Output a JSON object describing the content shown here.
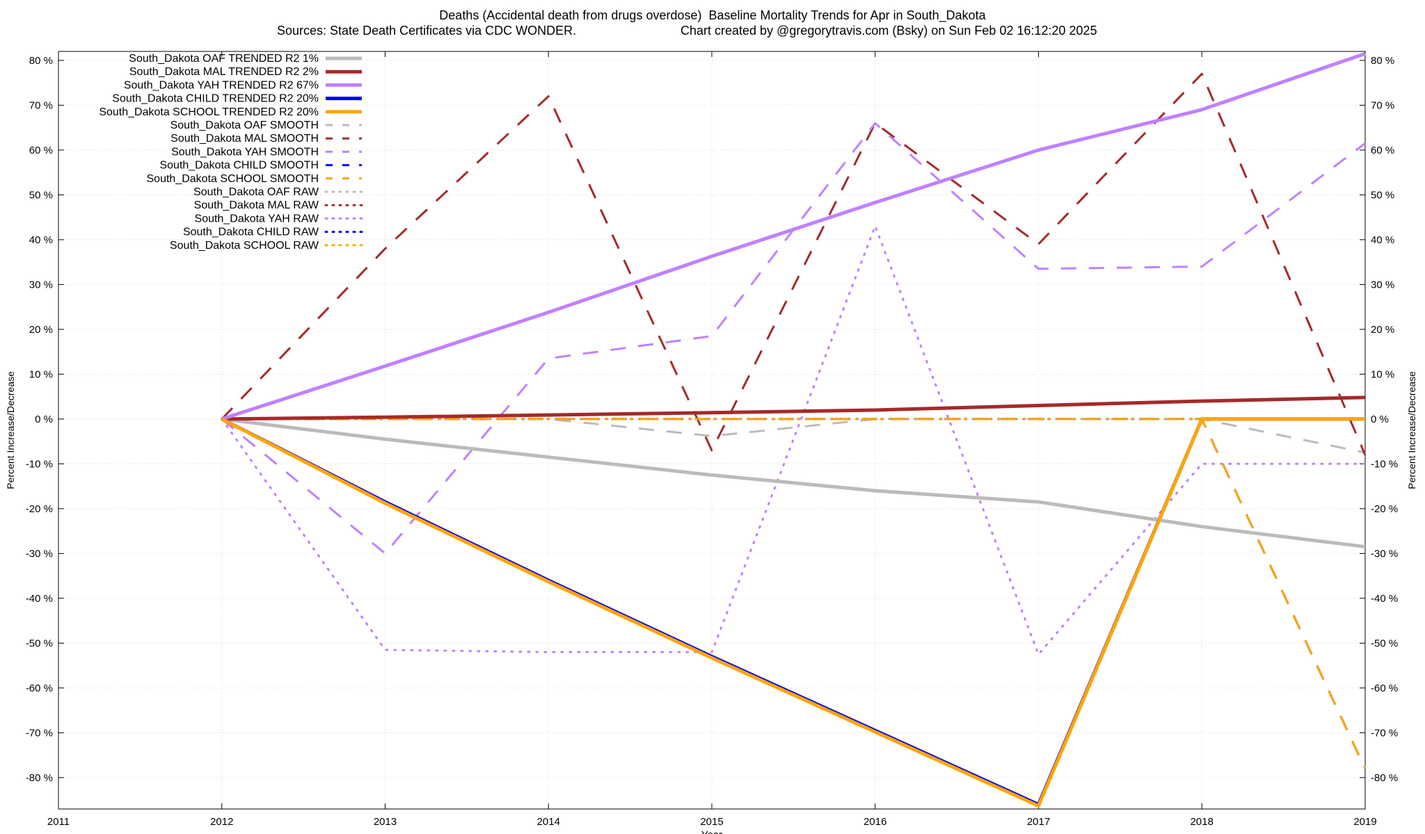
{
  "chart_data": {
    "type": "line",
    "title": "Deaths (Accidental death from drugs overdose)  Baseline Mortality Trends for Apr in South_Dakota",
    "subtitle_left": "Sources: State Death Certificates via CDC WONDER.",
    "subtitle_right": "Chart created by @gregorytravis.com (Bsky) on Sun Feb 02 16:12:20 2025",
    "xlabel": "Year",
    "ylabel_left": "Percent Increase/Decrease",
    "ylabel_right": "Percent Increase/Decrease",
    "xlim": [
      2011,
      2019
    ],
    "ylim": [
      -87,
      82
    ],
    "x_ticks": [
      "2011",
      "2012",
      "2013",
      "2014",
      "2015",
      "2016",
      "2017",
      "2018",
      "2019"
    ],
    "y_ticks": [
      "80 %",
      "70 %",
      "60 %",
      "50 %",
      "40 %",
      "30 %",
      "20 %",
      "10 %",
      "0 %",
      "-10 %",
      "-20 %",
      "-30 %",
      "-40 %",
      "-50 %",
      "-60 %",
      "-70 %",
      "-80 %"
    ],
    "y_tick_values": [
      80,
      70,
      60,
      50,
      40,
      30,
      20,
      10,
      0,
      -10,
      -20,
      -30,
      -40,
      -50,
      -60,
      -70,
      -80
    ],
    "grid": true,
    "legend_position": "top-left",
    "x": [
      2012,
      2013,
      2014,
      2015,
      2016,
      2017,
      2018,
      2019
    ],
    "series": [
      {
        "name": "South_Dakota OAF TRENDED R2   1%",
        "style": "trended",
        "color": "#bbbbbb",
        "values": [
          0,
          -4.5,
          -8.5,
          -12.5,
          -16,
          -18.5,
          -24,
          -28.5
        ]
      },
      {
        "name": "South_Dakota MAL TRENDED R2   2%",
        "style": "trended",
        "color": "#a52a2a",
        "values": [
          0,
          0.4,
          0.9,
          1.4,
          2,
          3,
          4,
          4.8
        ]
      },
      {
        "name": "South_Dakota YAH TRENDED R2  67%",
        "style": "trended",
        "color": "#c080ff",
        "values": [
          0,
          11.8,
          23.8,
          36.3,
          48.3,
          60,
          69,
          81.5
        ]
      },
      {
        "name": "South_Dakota CHILD TRENDED R2  20%",
        "style": "trended",
        "color": "#0000ff",
        "values": [
          0,
          -18.5,
          -36,
          -53,
          -69.5,
          -86,
          0,
          0
        ]
      },
      {
        "name": "South_Dakota SCHOOL TRENDED R2  20%",
        "style": "trended",
        "color": "#ffa500",
        "values": [
          0,
          -18.8,
          -36.3,
          -53.3,
          -69.8,
          -86.3,
          0,
          0
        ]
      },
      {
        "name": "South_Dakota OAF SMOOTH",
        "style": "smooth",
        "color": "#bbbbbb",
        "values": [
          0,
          0,
          0,
          -3.8,
          0,
          0,
          0,
          -7.5
        ]
      },
      {
        "name": "South_Dakota MAL SMOOTH",
        "style": "smooth",
        "color": "#a52a2a",
        "values": [
          0,
          38,
          72,
          -7,
          66,
          39,
          77,
          -8
        ]
      },
      {
        "name": "South_Dakota YAH SMOOTH",
        "style": "smooth",
        "color": "#c080ff",
        "values": [
          0,
          -30,
          13.5,
          18.5,
          66,
          33.5,
          34,
          61.5
        ]
      },
      {
        "name": "South_Dakota CHILD SMOOTH",
        "style": "smooth",
        "color": "#0000ff",
        "values": [
          0,
          0,
          0,
          0,
          0,
          0,
          0,
          -78
        ]
      },
      {
        "name": "South_Dakota SCHOOL SMOOTH",
        "style": "smooth",
        "color": "#ffa500",
        "values": [
          0,
          0,
          0,
          0,
          0,
          0,
          0,
          -78
        ]
      },
      {
        "name": "South_Dakota OAF RAW",
        "style": "raw",
        "color": "#bbbbbb",
        "values": [
          0,
          0,
          0,
          0,
          0,
          0,
          0,
          0
        ]
      },
      {
        "name": "South_Dakota MAL RAW",
        "style": "raw",
        "color": "#a52a2a",
        "values": [
          0,
          0,
          0,
          0,
          0,
          0,
          0,
          0
        ]
      },
      {
        "name": "South_Dakota YAH RAW",
        "style": "raw",
        "color": "#c080ff",
        "values": [
          0,
          -51.5,
          -52,
          -52,
          43,
          -52.5,
          -10,
          -10
        ]
      },
      {
        "name": "South_Dakota CHILD RAW",
        "style": "raw",
        "color": "#0000ff",
        "values": [
          0,
          0,
          0,
          0,
          0,
          0,
          0,
          0
        ]
      },
      {
        "name": "South_Dakota SCHOOL RAW",
        "style": "raw",
        "color": "#ffa500",
        "values": [
          0,
          0,
          0,
          0,
          0,
          0,
          0,
          0
        ]
      }
    ]
  }
}
